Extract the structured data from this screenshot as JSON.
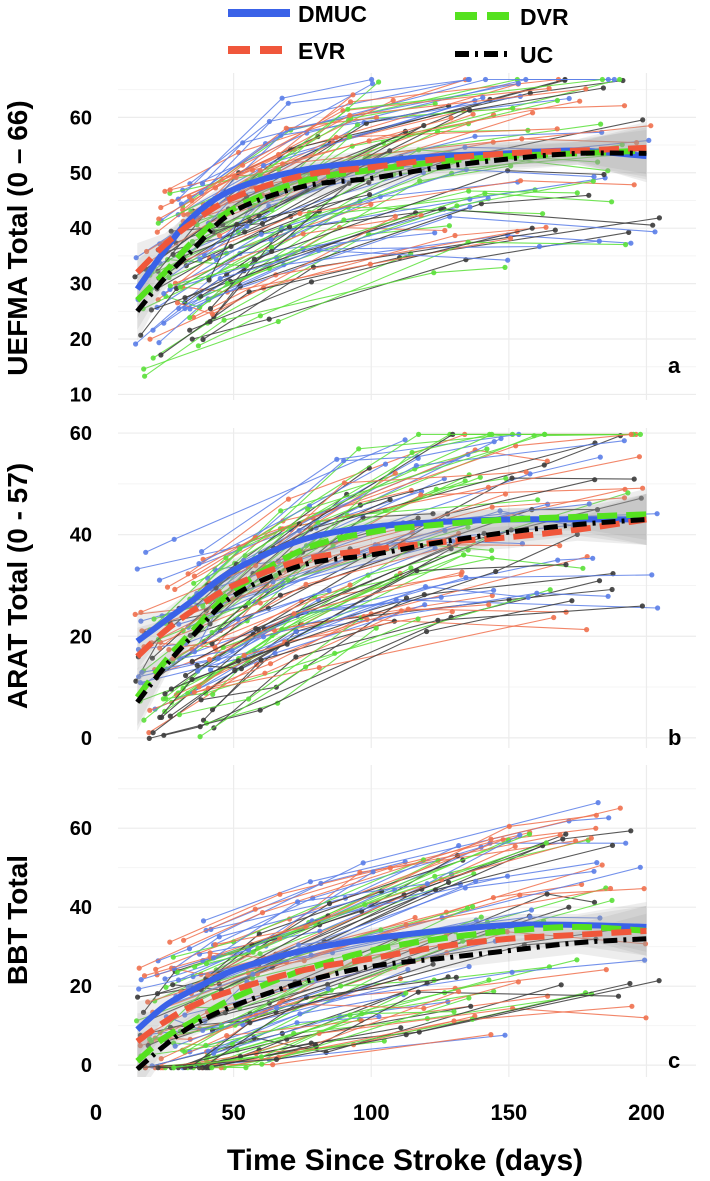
{
  "legend": {
    "placement": "top",
    "items": [
      {
        "name": "DMUC",
        "color": "#3a62e8",
        "dash": "solid"
      },
      {
        "name": "DVR",
        "color": "#55e11f",
        "dash": "dashed"
      },
      {
        "name": "EVR",
        "color": "#f0573b",
        "dash": "dashed"
      },
      {
        "name": "UC",
        "color": "#000000",
        "dash": "dashdot"
      }
    ]
  },
  "x_axis": {
    "label": "Time Since Stroke (days)",
    "range": [
      0,
      210
    ],
    "ticks": [
      "0",
      "50",
      "100",
      "150",
      "200"
    ]
  },
  "chart_data": [
    {
      "type": "line",
      "panel_label": "a",
      "ylabel": "UEFMA Total (0 – 66)",
      "ylim": [
        9,
        68
      ],
      "yticks": [
        "10",
        "20",
        "30",
        "40",
        "50",
        "60"
      ],
      "x": [
        15,
        25,
        35,
        50,
        75,
        100,
        125,
        150,
        175,
        200
      ],
      "series": [
        {
          "name": "DMUC",
          "values": [
            29,
            36,
            42,
            47,
            50.5,
            52,
            53,
            53.5,
            54,
            53
          ]
        },
        {
          "name": "DVR",
          "values": [
            27,
            32,
            37.5,
            43.5,
            48.5,
            50.5,
            52,
            53,
            53.5,
            54
          ]
        },
        {
          "name": "EVR",
          "values": [
            32,
            37,
            41,
            45.5,
            49.5,
            51,
            52.5,
            53.5,
            54,
            54.5
          ]
        },
        {
          "name": "UC",
          "values": [
            25,
            31,
            36,
            43,
            47.5,
            49,
            51,
            52.5,
            53.5,
            53.5
          ]
        }
      ]
    },
    {
      "type": "line",
      "panel_label": "b",
      "ylabel": "ARAT Total (0 - 57)",
      "ylim": [
        -2,
        61
      ],
      "yticks": [
        "0",
        "20",
        "40",
        "60"
      ],
      "x": [
        15,
        25,
        35,
        50,
        75,
        100,
        125,
        150,
        175,
        200
      ],
      "series": [
        {
          "name": "DMUC",
          "values": [
            19,
            23,
            27,
            33,
            39,
            41.5,
            42.5,
            43,
            43,
            43
          ]
        },
        {
          "name": "DVR",
          "values": [
            8,
            15,
            21,
            29,
            37,
            40.5,
            42,
            43,
            43.5,
            44
          ]
        },
        {
          "name": "EVR",
          "values": [
            16,
            21,
            25,
            30,
            35,
            37,
            38.5,
            39.5,
            41,
            43
          ]
        },
        {
          "name": "UC",
          "values": [
            7,
            14,
            20,
            28,
            34,
            36,
            38.5,
            40.5,
            42,
            43
          ]
        }
      ]
    },
    {
      "type": "line",
      "panel_label": "c",
      "ylabel": "BBT Total",
      "ylim": [
        -3,
        76
      ],
      "yticks": [
        "0",
        "20",
        "40",
        "60"
      ],
      "x": [
        15,
        25,
        35,
        50,
        75,
        100,
        125,
        150,
        175,
        200
      ],
      "series": [
        {
          "name": "DMUC",
          "values": [
            9,
            15,
            19,
            24,
            29,
            32,
            34,
            35.5,
            35.5,
            35
          ]
        },
        {
          "name": "DVR",
          "values": [
            1,
            7,
            11,
            17,
            24,
            29,
            32,
            34,
            35,
            34
          ]
        },
        {
          "name": "EVR",
          "values": [
            6,
            11,
            15,
            19,
            24,
            27,
            30,
            32,
            33,
            34
          ]
        },
        {
          "name": "UC",
          "values": [
            -1,
            5,
            10,
            15,
            21,
            25,
            27,
            29,
            31,
            32
          ]
        }
      ]
    }
  ]
}
